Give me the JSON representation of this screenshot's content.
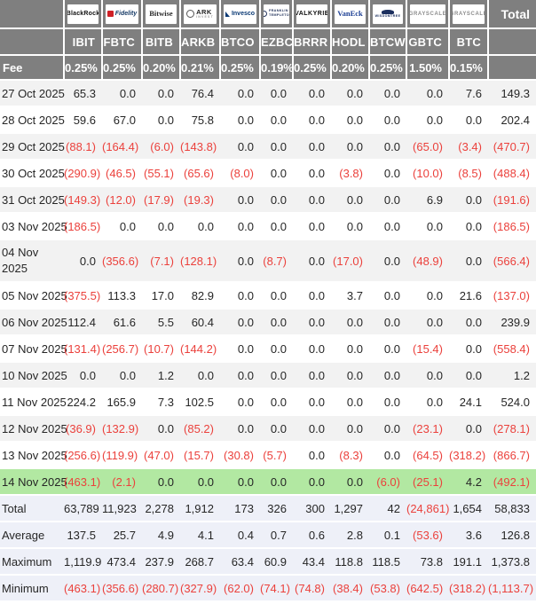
{
  "colors": {
    "header_bg": "#7f7f7f",
    "header_text": "#ffffff",
    "stripe_bg": "#f2f2f2",
    "highlight_bg": "#b2e8a2",
    "summary_bg": "#eef0f8",
    "negative": "#eb413c",
    "text": "#262626"
  },
  "chart_data": {
    "type": "table",
    "fee_label": "Fee",
    "total_label": "Total",
    "columns": [
      "IBIT",
      "FBTC",
      "BITB",
      "ARKB",
      "BTCO",
      "EZBC",
      "BRRR",
      "HODL",
      "BTCW",
      "GBTC",
      "BTC",
      "Total"
    ],
    "providers": [
      {
        "key": "blackrock",
        "brand": "BlackRock",
        "ticker": "IBIT",
        "fee": "0.25%",
        "color": "#111111"
      },
      {
        "key": "fidelity",
        "brand": "Fidelity",
        "ticker": "FBTC",
        "fee": "0.25%",
        "color": "#163a66",
        "icon": "fidelity-square-icon"
      },
      {
        "key": "bitwise",
        "brand": "Bitwise",
        "ticker": "BITB",
        "fee": "0.20%",
        "color": "#2b2b2b"
      },
      {
        "key": "ark",
        "brand": "ARK",
        "brand_sub": "INVEST",
        "ticker": "ARKB",
        "fee": "0.21%",
        "color": "#222222",
        "sub_color": "#999999",
        "icon": "ark-circle-icon"
      },
      {
        "key": "invesco",
        "brand": "Invesco",
        "ticker": "BTCO",
        "fee": "0.25%",
        "color": "#0b3a75",
        "icon": "invesco-wedge-icon"
      },
      {
        "key": "franklin",
        "brand": "FRANKLIN",
        "brand_sub": "TEMPLETON",
        "ticker": "EZBC",
        "fee": "0.19%",
        "color": "#26365e",
        "sub_color": "#26365e",
        "icon": "franklin-circle-icon"
      },
      {
        "key": "valkyrie",
        "brand": "VALKYRIE",
        "ticker": "BRRR",
        "fee": "0.25%",
        "color": "#0d0d0d"
      },
      {
        "key": "vaneck",
        "brand": "VanEck",
        "ticker": "HODL",
        "fee": "0.20%",
        "color": "#1c3f94"
      },
      {
        "key": "wisdomtree",
        "brand": "WISDOMTREE",
        "ticker": "BTCW",
        "fee": "0.25%",
        "color": "#1b2f5e",
        "icon": "wisdomtree-tree-icon"
      },
      {
        "key": "grayscale",
        "brand": "GRAYSCALE",
        "ticker": "GBTC",
        "fee": "1.50%",
        "color": "#8c8c8c"
      },
      {
        "key": "grayscale2",
        "brand": "GRAYSCALE",
        "ticker": "BTC",
        "fee": "0.15%",
        "color": "#8c8c8c"
      }
    ],
    "rows": [
      {
        "date": "27 Oct 2025",
        "values": [
          "65.3",
          "0.0",
          "0.0",
          "76.4",
          "0.0",
          "0.0",
          "0.0",
          "0.0",
          "0.0",
          "0.0",
          "7.6",
          "149.3"
        ]
      },
      {
        "date": "28 Oct 2025",
        "values": [
          "59.6",
          "67.0",
          "0.0",
          "75.8",
          "0.0",
          "0.0",
          "0.0",
          "0.0",
          "0.0",
          "0.0",
          "0.0",
          "202.4"
        ]
      },
      {
        "date": "29 Oct 2025",
        "values": [
          "(88.1)",
          "(164.4)",
          "(6.0)",
          "(143.8)",
          "0.0",
          "0.0",
          "0.0",
          "0.0",
          "0.0",
          "(65.0)",
          "(3.4)",
          "(470.7)"
        ]
      },
      {
        "date": "30 Oct 2025",
        "values": [
          "(290.9)",
          "(46.5)",
          "(55.1)",
          "(65.6)",
          "(8.0)",
          "0.0",
          "0.0",
          "(3.8)",
          "0.0",
          "(10.0)",
          "(8.5)",
          "(488.4)"
        ]
      },
      {
        "date": "31 Oct 2025",
        "values": [
          "(149.3)",
          "(12.0)",
          "(17.9)",
          "(19.3)",
          "0.0",
          "0.0",
          "0.0",
          "0.0",
          "0.0",
          "6.9",
          "0.0",
          "(191.6)"
        ]
      },
      {
        "date": "03 Nov 2025",
        "values": [
          "(186.5)",
          "0.0",
          "0.0",
          "0.0",
          "0.0",
          "0.0",
          "0.0",
          "0.0",
          "0.0",
          "0.0",
          "0.0",
          "(186.5)"
        ]
      },
      {
        "date": "04 Nov 2025",
        "wrap": true,
        "values": [
          "0.0",
          "(356.6)",
          "(7.1)",
          "(128.1)",
          "0.0",
          "(8.7)",
          "0.0",
          "(17.0)",
          "0.0",
          "(48.9)",
          "0.0",
          "(566.4)"
        ]
      },
      {
        "date": "05 Nov 2025",
        "values": [
          "(375.5)",
          "113.3",
          "17.0",
          "82.9",
          "0.0",
          "0.0",
          "0.0",
          "3.7",
          "0.0",
          "0.0",
          "21.6",
          "(137.0)"
        ]
      },
      {
        "date": "06 Nov 2025",
        "values": [
          "112.4",
          "61.6",
          "5.5",
          "60.4",
          "0.0",
          "0.0",
          "0.0",
          "0.0",
          "0.0",
          "0.0",
          "0.0",
          "239.9"
        ]
      },
      {
        "date": "07 Nov 2025",
        "values": [
          "(131.4)",
          "(256.7)",
          "(10.7)",
          "(144.2)",
          "0.0",
          "0.0",
          "0.0",
          "0.0",
          "0.0",
          "(15.4)",
          "0.0",
          "(558.4)"
        ]
      },
      {
        "date": "10 Nov 2025",
        "values": [
          "0.0",
          "0.0",
          "1.2",
          "0.0",
          "0.0",
          "0.0",
          "0.0",
          "0.0",
          "0.0",
          "0.0",
          "0.0",
          "1.2"
        ]
      },
      {
        "date": "11 Nov 2025",
        "values": [
          "224.2",
          "165.9",
          "7.3",
          "102.5",
          "0.0",
          "0.0",
          "0.0",
          "0.0",
          "0.0",
          "0.0",
          "24.1",
          "524.0"
        ]
      },
      {
        "date": "12 Nov 2025",
        "values": [
          "(36.9)",
          "(132.9)",
          "0.0",
          "(85.2)",
          "0.0",
          "0.0",
          "0.0",
          "0.0",
          "0.0",
          "(23.1)",
          "0.0",
          "(278.1)"
        ]
      },
      {
        "date": "13 Nov 2025",
        "values": [
          "(256.6)",
          "(119.9)",
          "(47.0)",
          "(15.7)",
          "(30.8)",
          "(5.7)",
          "0.0",
          "(8.3)",
          "0.0",
          "(64.5)",
          "(318.2)",
          "(866.7)"
        ]
      },
      {
        "date": "14 Nov 2025",
        "highlight": true,
        "values": [
          "(463.1)",
          "(2.1)",
          "0.0",
          "0.0",
          "0.0",
          "0.0",
          "0.0",
          "0.0",
          "(6.0)",
          "(25.1)",
          "4.2",
          "(492.1)"
        ]
      }
    ],
    "summary": [
      {
        "label": "Total",
        "values": [
          "63,789",
          "11,923",
          "2,278",
          "1,912",
          "173",
          "326",
          "300",
          "1,297",
          "42",
          "(24,861)",
          "1,654",
          "58,833"
        ]
      },
      {
        "label": "Average",
        "values": [
          "137.5",
          "25.7",
          "4.9",
          "4.1",
          "0.4",
          "0.7",
          "0.6",
          "2.8",
          "0.1",
          "(53.6)",
          "3.6",
          "126.8"
        ]
      },
      {
        "label": "Maximum",
        "values": [
          "1,119.9",
          "473.4",
          "237.9",
          "268.7",
          "63.4",
          "60.9",
          "43.4",
          "118.8",
          "118.5",
          "73.8",
          "191.1",
          "1,373.8"
        ]
      },
      {
        "label": "Minimum",
        "values": [
          "(463.1)",
          "(356.6)",
          "(280.7)",
          "(327.9)",
          "(62.0)",
          "(74.1)",
          "(74.8)",
          "(38.4)",
          "(53.8)",
          "(642.5)",
          "(318.2)",
          "(1,113.7)"
        ]
      }
    ]
  }
}
